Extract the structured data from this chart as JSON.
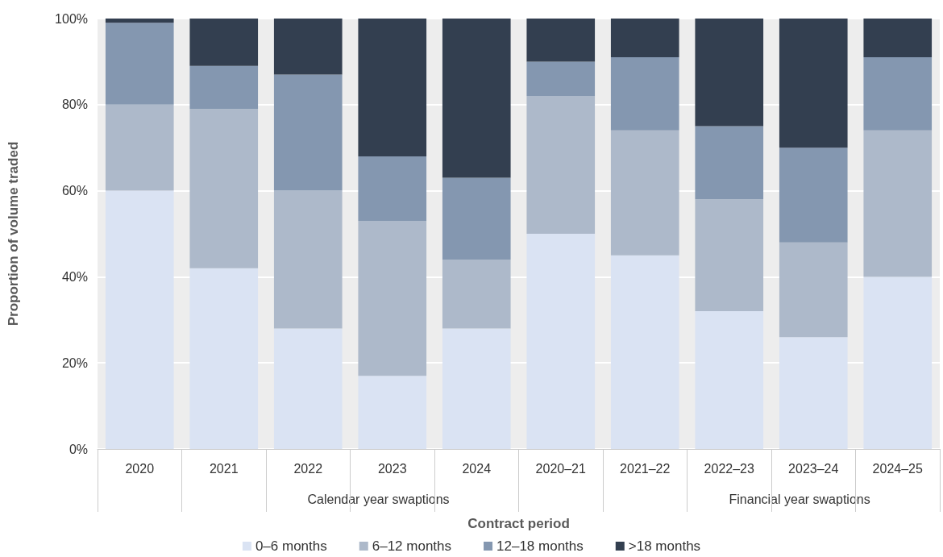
{
  "chart_data": {
    "type": "bar",
    "stacked": true,
    "xlabel": "Contract period",
    "ylabel": "Proportion of volume traded",
    "categories": [
      "2020",
      "2021",
      "2022",
      "2023",
      "2024",
      "2020–21",
      "2021–22",
      "2022–23",
      "2023–24",
      "2024–25"
    ],
    "series": [
      {
        "name": "0–6 months",
        "color": "#dae3f3",
        "values": [
          60,
          42,
          28,
          17,
          28,
          50,
          45,
          32,
          26,
          40
        ]
      },
      {
        "name": "6–12 months",
        "color": "#adb9ca",
        "values": [
          20,
          37,
          32,
          36,
          16,
          32,
          29,
          26,
          22,
          34
        ]
      },
      {
        "name": "12–18 months",
        "color": "#8497b0",
        "values": [
          19,
          10,
          27,
          15,
          19,
          8,
          17,
          17,
          22,
          17
        ]
      },
      {
        "name": ">18 months",
        "color": "#333f50",
        "values": [
          1,
          11,
          13,
          32,
          37,
          10,
          9,
          25,
          30,
          9
        ]
      }
    ],
    "ylim": [
      0,
      100
    ],
    "yticks": [
      {
        "value": 0,
        "label": "0%"
      },
      {
        "value": 20,
        "label": "20%"
      },
      {
        "value": 40,
        "label": "40%"
      },
      {
        "value": 60,
        "label": "60%"
      },
      {
        "value": 80,
        "label": "80%"
      },
      {
        "value": 100,
        "label": "100%"
      }
    ],
    "grid": "y",
    "legend": "bottom",
    "annotations": [
      "Calendar year swaptions",
      "Financial year swaptions"
    ]
  }
}
